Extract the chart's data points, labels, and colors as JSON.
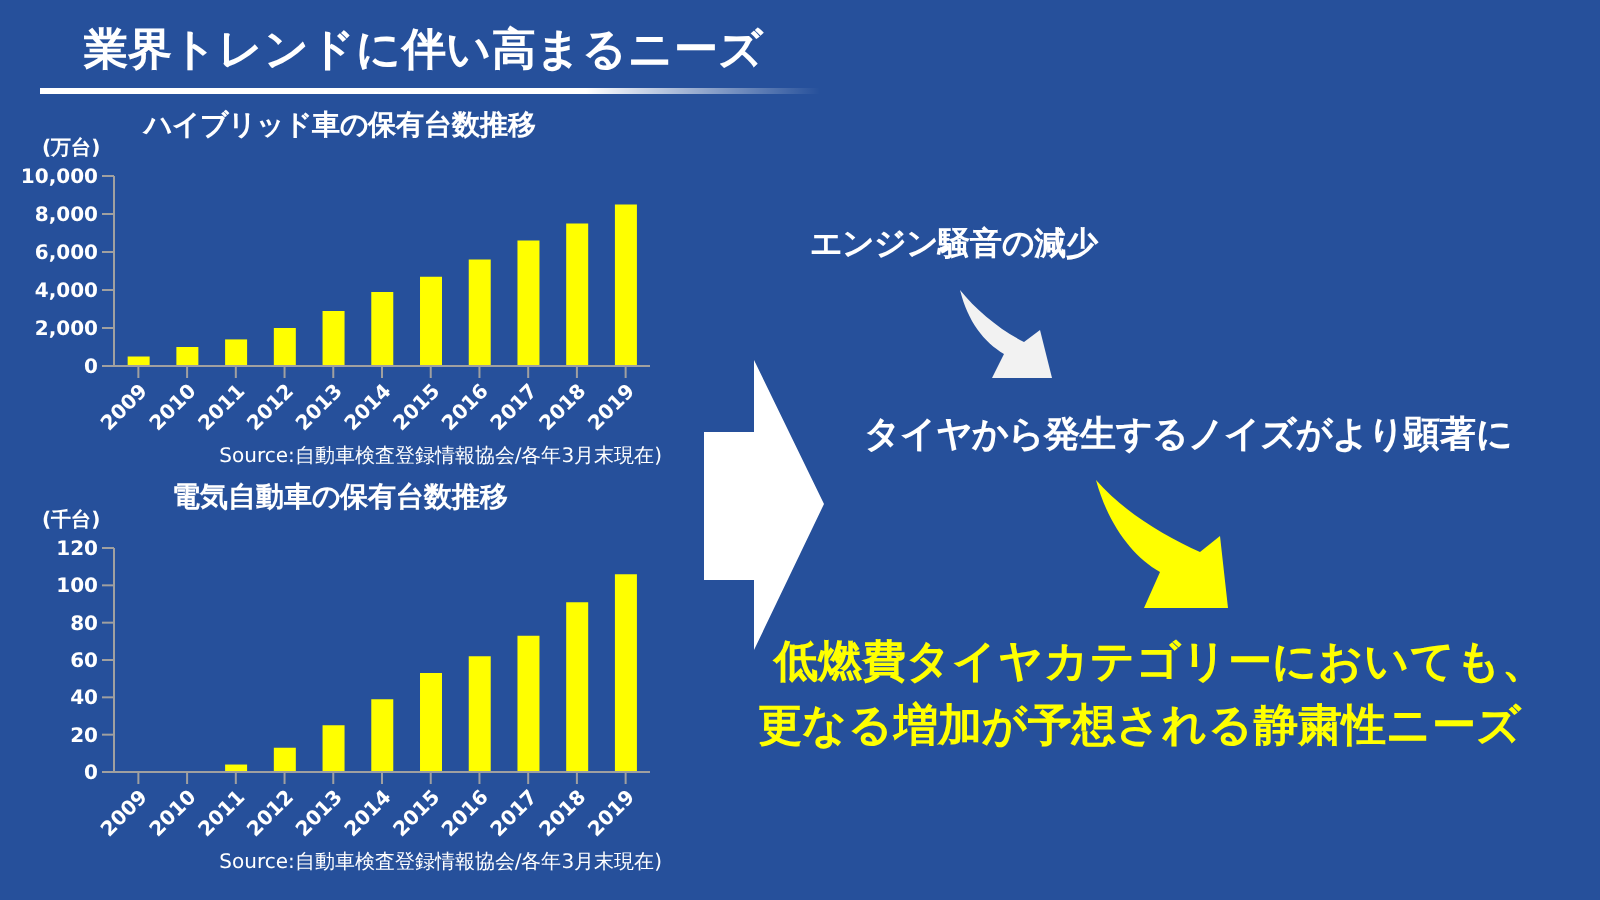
{
  "chart_data": [
    {
      "type": "other",
      "title": "業界トレンドに伴い高まるニーズ"
    },
    {
      "type": "bar",
      "title": "ハイブリッド車の保有台数推移",
      "ylabel": "(万台)",
      "categories": [
        "2009",
        "2010",
        "2011",
        "2012",
        "2013",
        "2014",
        "2015",
        "2016",
        "2017",
        "2018",
        "2019"
      ],
      "values": [
        500,
        1000,
        1400,
        2000,
        2900,
        3900,
        4700,
        5600,
        6600,
        7500,
        8500
      ],
      "color": "#ffff00",
      "ylim": [
        0,
        10000
      ],
      "yticks": [
        0,
        {
          "value": 2000,
          "label": "2,000"
        },
        {
          "value": 4000,
          "label": "4,000"
        },
        {
          "value": 6000,
          "label": "6,000"
        },
        {
          "value": 8000,
          "label": "8,000"
        },
        {
          "value": 10000,
          "label": "10,000"
        }
      ],
      "annotations": [
        "Source:自動車検査登録情報協会/各年3月末現在)"
      ]
    },
    {
      "type": "bar",
      "title": "電気自動車の保有台数推移",
      "ylabel": "(千台)",
      "categories": [
        "2009",
        "2010",
        "2011",
        "2012",
        "2013",
        "2014",
        "2015",
        "2016",
        "2017",
        "2018",
        "2019"
      ],
      "values": [
        0,
        0,
        4,
        13,
        25,
        39,
        53,
        62,
        73,
        91,
        106
      ],
      "color": "#ffff00",
      "ylim": [
        0,
        120
      ],
      "yticks": [
        0,
        20,
        40,
        60,
        80,
        100,
        120
      ],
      "annotations": [
        "Source:自動車検査登録情報協会/各年3月末現在)"
      ]
    },
    {
      "type": "other",
      "annotations": [
        "エンジン騒音の減少",
        "タイヤから発生するノイズがより顕著に",
        "低燃費タイヤカテゴリーにおいても、",
        "更なる増加が予想される静粛性ニーズ"
      ]
    }
  ]
}
